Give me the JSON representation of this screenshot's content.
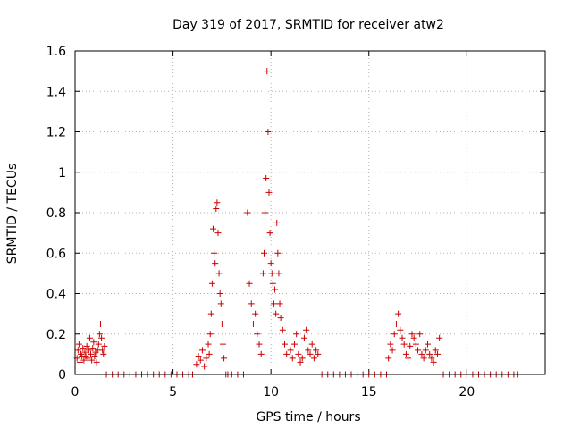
{
  "chart_data": {
    "type": "scatter",
    "title": "Day 319 of 2017, SRMTID for receiver atw2",
    "xlabel": "GPS time / hours",
    "ylabel": "SRMTID / TECUs",
    "xlim": [
      0,
      24
    ],
    "ylim": [
      0,
      1.6
    ],
    "xticks": [
      "0",
      "5",
      "10",
      "15",
      "20"
    ],
    "yticks": [
      "0",
      "0.2",
      "0.4",
      "0.6",
      "0.8",
      "1",
      "1.2",
      "1.4",
      "1.6"
    ],
    "grid": true,
    "marker": "plus",
    "color": "#cc0000",
    "series": [
      {
        "name": "SRMTID",
        "x": [
          0.1,
          0.15,
          0.2,
          0.25,
          0.3,
          0.35,
          0.4,
          0.45,
          0.5,
          0.55,
          0.6,
          0.65,
          0.7,
          0.75,
          0.8,
          0.85,
          0.9,
          0.95,
          1.0,
          1.05,
          1.1,
          1.15,
          1.2,
          1.25,
          1.3,
          1.35,
          1.4,
          1.45,
          1.5,
          1.6,
          1.9,
          2.2,
          2.5,
          2.8,
          3.1,
          3.4,
          3.7,
          4.0,
          4.3,
          4.6,
          4.9,
          5.2,
          5.5,
          5.8,
          6.0,
          6.2,
          6.3,
          6.4,
          6.5,
          6.6,
          6.7,
          6.8,
          6.85,
          6.9,
          6.95,
          7.0,
          7.05,
          7.1,
          7.15,
          7.2,
          7.25,
          7.3,
          7.35,
          7.4,
          7.45,
          7.5,
          7.55,
          7.6,
          7.7,
          7.8,
          8.0,
          8.3,
          8.6,
          8.8,
          8.9,
          9.0,
          9.1,
          9.2,
          9.3,
          9.4,
          9.5,
          9.6,
          9.65,
          9.7,
          9.75,
          9.8,
          9.85,
          9.9,
          9.95,
          10.0,
          10.05,
          10.1,
          10.15,
          10.2,
          10.25,
          10.3,
          10.35,
          10.4,
          10.45,
          10.5,
          10.6,
          10.7,
          10.8,
          11.0,
          11.1,
          11.2,
          11.3,
          11.4,
          11.5,
          11.6,
          11.7,
          11.8,
          11.9,
          12.0,
          12.1,
          12.2,
          12.3,
          12.4,
          12.6,
          12.9,
          13.2,
          13.5,
          13.8,
          14.1,
          14.4,
          14.7,
          15.0,
          15.3,
          15.6,
          15.9,
          16.0,
          16.1,
          16.2,
          16.3,
          16.4,
          16.5,
          16.6,
          16.7,
          16.8,
          16.9,
          17.0,
          17.1,
          17.2,
          17.3,
          17.4,
          17.5,
          17.6,
          17.7,
          17.8,
          17.9,
          18.0,
          18.1,
          18.2,
          18.3,
          18.4,
          18.5,
          18.6,
          18.8,
          19.1,
          19.4,
          19.7,
          20.0,
          20.3,
          20.6,
          20.9,
          21.2,
          21.5,
          21.8,
          22.1,
          22.4,
          22.6
        ],
        "y": [
          0.08,
          0.12,
          0.15,
          0.06,
          0.1,
          0.09,
          0.13,
          0.07,
          0.11,
          0.09,
          0.14,
          0.08,
          0.12,
          0.18,
          0.1,
          0.07,
          0.13,
          0.16,
          0.09,
          0.11,
          0.06,
          0.12,
          0.15,
          0.2,
          0.25,
          0.18,
          0.12,
          0.1,
          0.14,
          0,
          0,
          0,
          0,
          0,
          0,
          0,
          0,
          0,
          0,
          0,
          0,
          0,
          0,
          0,
          0,
          0.05,
          0.09,
          0.07,
          0.12,
          0.04,
          0.08,
          0.15,
          0.1,
          0.2,
          0.3,
          0.45,
          0.72,
          0.6,
          0.55,
          0.82,
          0.85,
          0.7,
          0.5,
          0.4,
          0.35,
          0.25,
          0.15,
          0.08,
          0,
          0,
          0,
          0,
          0,
          0.8,
          0.45,
          0.35,
          0.25,
          0.3,
          0.2,
          0.15,
          0.1,
          0.5,
          0.6,
          0.8,
          0.97,
          1.5,
          1.2,
          0.9,
          0.7,
          0.55,
          0.5,
          0.45,
          0.35,
          0.42,
          0.3,
          0.75,
          0.6,
          0.5,
          0.35,
          0.28,
          0.22,
          0.15,
          0.1,
          0.12,
          0.08,
          0.15,
          0.2,
          0.1,
          0.06,
          0.08,
          0.18,
          0.22,
          0.12,
          0.1,
          0.15,
          0.08,
          0.12,
          0.1,
          0,
          0,
          0,
          0,
          0,
          0,
          0,
          0,
          0,
          0,
          0,
          0,
          0.08,
          0.15,
          0.12,
          0.2,
          0.25,
          0.3,
          0.22,
          0.18,
          0.15,
          0.1,
          0.08,
          0.14,
          0.2,
          0.18,
          0.15,
          0.12,
          0.2,
          0.1,
          0.08,
          0.12,
          0.15,
          0.1,
          0.08,
          0.06,
          0.12,
          0.1,
          0.18,
          0,
          0,
          0,
          0,
          0,
          0,
          0,
          0,
          0,
          0,
          0,
          0,
          0,
          0
        ]
      }
    ]
  }
}
